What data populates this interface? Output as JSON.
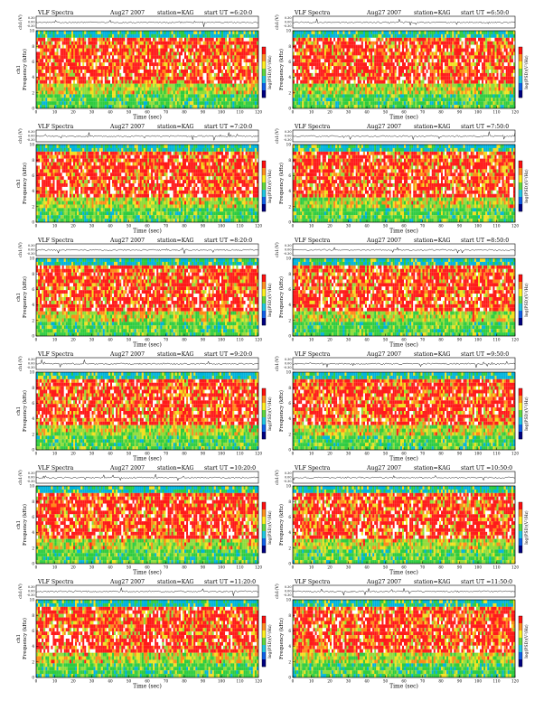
{
  "chart_data": [
    {
      "type": "heatmap",
      "title": "VLF Spectra",
      "month": "Aug27 2007",
      "station": "station=KAG",
      "start": "start UT =6:20:0",
      "channel_label": "ch1(V)",
      "channel_ticks": [
        "0.30",
        "0.00",
        "-0.30"
      ],
      "ylabel": "Frequency (kHz)",
      "ylabel_prefix": "ch1",
      "xlabel": "Time (sec)",
      "x_ticks": [
        0,
        10,
        20,
        30,
        40,
        50,
        60,
        70,
        80,
        90,
        100,
        110,
        120
      ],
      "y_ticks": [
        0,
        2,
        4,
        6,
        8,
        10
      ],
      "xlim": [
        0,
        120
      ],
      "ylim": [
        0,
        10
      ],
      "colorbar_label": "log(PSD)(V²/Hz)"
    },
    {
      "type": "heatmap",
      "title": "VLF Spectra",
      "month": "Aug27 2007",
      "station": "station=KAG",
      "start": "start UT =6:50:0",
      "channel_label": "ch1(V)",
      "channel_ticks": [
        "0.30",
        "0.00",
        "-0.30"
      ],
      "ylabel": "Frequency (kHz)",
      "ylabel_prefix": "",
      "xlabel": "Time (sec)",
      "x_ticks": [
        0,
        10,
        20,
        30,
        40,
        50,
        60,
        70,
        80,
        90,
        100,
        110,
        120
      ],
      "y_ticks": [
        0,
        2,
        4,
        6,
        8,
        10
      ],
      "xlim": [
        0,
        120
      ],
      "ylim": [
        0,
        10
      ],
      "colorbar_label": "log(PSD)(V²/Hz)"
    },
    {
      "type": "heatmap",
      "title": "VLF Spectra",
      "month": "Aug27 2007",
      "station": "station=KAG",
      "start": "start UT =7:20:0",
      "channel_label": "ch1(V)",
      "channel_ticks": [
        "0.30",
        "0.00",
        "-0.30"
      ],
      "ylabel": "Frequency (kHz)",
      "ylabel_prefix": "ch1",
      "xlabel": "Time (sec)",
      "x_ticks": [
        0,
        10,
        20,
        30,
        40,
        50,
        60,
        70,
        80,
        90,
        100,
        110,
        120
      ],
      "y_ticks": [
        0,
        2,
        4,
        6,
        8,
        10
      ],
      "xlim": [
        0,
        120
      ],
      "ylim": [
        0,
        10
      ],
      "colorbar_label": "log(PSD)(V²/Hz)"
    },
    {
      "type": "heatmap",
      "title": "VLF Spectra",
      "month": "Aug27 2007",
      "station": "station=KAG",
      "start": "start UT =7:50:0",
      "channel_label": "ch1(V)",
      "channel_ticks": [
        "0.30",
        "0.00",
        "-0.30"
      ],
      "ylabel": "Frequency (kHz)",
      "ylabel_prefix": "",
      "xlabel": "Time (sec)",
      "x_ticks": [
        0,
        10,
        20,
        30,
        40,
        50,
        60,
        70,
        80,
        90,
        100,
        110,
        120
      ],
      "y_ticks": [
        0,
        2,
        4,
        6,
        8,
        10
      ],
      "xlim": [
        0,
        120
      ],
      "ylim": [
        0,
        10
      ],
      "colorbar_label": "log(PSD)(V²/Hz)"
    },
    {
      "type": "heatmap",
      "title": "VLF Spectra",
      "month": "Aug27 2007",
      "station": "station=KAG",
      "start": "start UT =8:20:0",
      "channel_label": "ch1(V)",
      "channel_ticks": [
        "0.30",
        "0.00",
        "-0.30"
      ],
      "ylabel": "Frequency (kHz)",
      "ylabel_prefix": "ch1",
      "xlabel": "Time (sec)",
      "x_ticks": [
        0,
        10,
        20,
        30,
        40,
        50,
        60,
        70,
        80,
        90,
        100,
        110,
        120
      ],
      "y_ticks": [
        0,
        2,
        4,
        6,
        8,
        10
      ],
      "xlim": [
        0,
        120
      ],
      "ylim": [
        0,
        10
      ],
      "colorbar_label": "log(PSD)(V²/Hz)"
    },
    {
      "type": "heatmap",
      "title": "VLF Spectra",
      "month": "Aug27 2007",
      "station": "station=KAG",
      "start": "start UT =8:50:0",
      "channel_label": "ch1(V)",
      "channel_ticks": [
        "0.30",
        "0.00",
        "-0.30"
      ],
      "ylabel": "Frequency (kHz)",
      "ylabel_prefix": "",
      "xlabel": "Time (sec)",
      "x_ticks": [
        0,
        10,
        20,
        30,
        40,
        50,
        60,
        70,
        80,
        90,
        100,
        110,
        120
      ],
      "y_ticks": [
        0,
        2,
        4,
        6,
        8,
        10
      ],
      "xlim": [
        0,
        120
      ],
      "ylim": [
        0,
        10
      ],
      "colorbar_label": "log(PSD)(V²/Hz)"
    },
    {
      "type": "heatmap",
      "title": "VLF Spectra",
      "month": "Aug27 2007",
      "station": "station=KAG",
      "start": "start UT =9:20:0",
      "channel_label": "ch1(V)",
      "channel_ticks": [
        "0.30",
        "0.00",
        "-0.30"
      ],
      "ylabel": "Frequency (kHz)",
      "ylabel_prefix": "ch1",
      "xlabel": "Time (sec)",
      "x_ticks": [
        0,
        10,
        20,
        30,
        40,
        50,
        60,
        70,
        80,
        90,
        100,
        110,
        120
      ],
      "y_ticks": [
        0,
        2,
        4,
        6,
        8,
        10
      ],
      "xlim": [
        0,
        120
      ],
      "ylim": [
        0,
        10
      ],
      "colorbar_label": "log(PSD)(V²/Hz)"
    },
    {
      "type": "heatmap",
      "title": "VLF Spectra",
      "month": "Aug27 2007",
      "station": "station=KAG",
      "start": "start UT =9:50:0",
      "channel_label": "ch1(V)",
      "channel_ticks": [
        "0.30",
        "0.00",
        "-0.30"
      ],
      "ylabel": "Frequency (kHz)",
      "ylabel_prefix": "",
      "xlabel": "Time (sec)",
      "x_ticks": [
        0,
        10,
        20,
        30,
        40,
        50,
        60,
        70,
        80,
        90,
        100,
        110,
        120
      ],
      "y_ticks": [
        0,
        2,
        4,
        6,
        8,
        10
      ],
      "xlim": [
        0,
        120
      ],
      "ylim": [
        0,
        10
      ],
      "colorbar_label": "log(PSD)(V²/Hz)"
    },
    {
      "type": "heatmap",
      "title": "VLF Spectra",
      "month": "Aug27 2007",
      "station": "station=KAG",
      "start": "start UT =10:20:0",
      "channel_label": "ch1(V)",
      "channel_ticks": [
        "0.30",
        "0.00",
        "-0.30"
      ],
      "ylabel": "Frequency (kHz)",
      "ylabel_prefix": "ch1",
      "xlabel": "Time (sec)",
      "x_ticks": [
        0,
        10,
        20,
        30,
        40,
        50,
        60,
        70,
        80,
        90,
        100,
        110,
        120
      ],
      "y_ticks": [
        0,
        2,
        4,
        6,
        8,
        10
      ],
      "xlim": [
        0,
        120
      ],
      "ylim": [
        0,
        10
      ],
      "colorbar_label": "log(PSD)(V²/Hz)"
    },
    {
      "type": "heatmap",
      "title": "VLF Spectra",
      "month": "Aug27 2007",
      "station": "station=KAG",
      "start": "start UT =10:50:0",
      "channel_label": "ch1(V)",
      "channel_ticks": [
        "0.30",
        "0.00",
        "-0.30"
      ],
      "ylabel": "Frequency (kHz)",
      "ylabel_prefix": "",
      "xlabel": "Time (sec)",
      "x_ticks": [
        0,
        10,
        20,
        30,
        40,
        50,
        60,
        70,
        80,
        90,
        100,
        110,
        120
      ],
      "y_ticks": [
        0,
        2,
        4,
        6,
        8,
        10
      ],
      "xlim": [
        0,
        120
      ],
      "ylim": [
        0,
        10
      ],
      "colorbar_label": "log(PSD)(V²/Hz)"
    },
    {
      "type": "heatmap",
      "title": "VLF Spectra",
      "month": "Aug27 2007",
      "station": "station=KAG",
      "start": "start UT =11:20:0",
      "channel_label": "ch1(V)",
      "channel_ticks": [
        "0.30",
        "0.00",
        "-0.30"
      ],
      "ylabel": "Frequency (kHz)",
      "ylabel_prefix": "ch1",
      "xlabel": "Time (sec)",
      "x_ticks": [
        0,
        10,
        20,
        30,
        40,
        50,
        60,
        70,
        80,
        90,
        100,
        110,
        120
      ],
      "y_ticks": [
        0,
        2,
        4,
        6,
        8,
        10
      ],
      "xlim": [
        0,
        120
      ],
      "ylim": [
        0,
        10
      ],
      "colorbar_label": "log(PSD)(V²/Hz)"
    },
    {
      "type": "heatmap",
      "title": "VLF Spectra",
      "month": "Aug27 2007",
      "station": "station=KAG",
      "start": "start UT =11:50:0",
      "channel_label": "ch1(V)",
      "channel_ticks": [
        "0.30",
        "0.00",
        "-0.30"
      ],
      "ylabel": "Frequency (kHz)",
      "ylabel_prefix": "",
      "xlabel": "Time (sec)",
      "x_ticks": [
        0,
        10,
        20,
        30,
        40,
        50,
        60,
        70,
        80,
        90,
        100,
        110,
        120
      ],
      "y_ticks": [
        0,
        2,
        4,
        6,
        8,
        10
      ],
      "xlim": [
        0,
        120
      ],
      "ylim": [
        0,
        10
      ],
      "colorbar_label": "log(PSD)(V²/Hz)"
    }
  ],
  "colors": {
    "spectrogram": [
      "#00b4dc",
      "#2ecc40",
      "#8fdc3a",
      "#f2e020",
      "#ff8a1a",
      "#ff1a1a",
      "#ffffff"
    ],
    "colorbar": [
      "#ff1010",
      "#ff9020",
      "#fff020",
      "#60d840",
      "#20c8e0",
      "#1060e8",
      "#000080"
    ],
    "trace": "#000000"
  }
}
